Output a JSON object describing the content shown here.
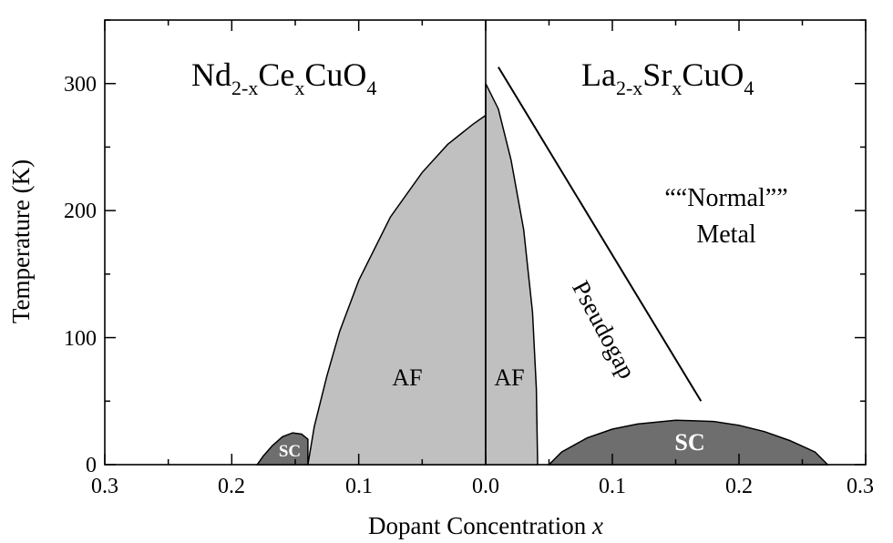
{
  "chart_data": {
    "type": "area",
    "title": "",
    "xlabel": "Dopant Concentration ",
    "xlabel_symbol": "x",
    "ylabel": "Temperature  (K)",
    "ylim": [
      0,
      350
    ],
    "yticks": [
      "0",
      "100",
      "200",
      "300"
    ],
    "x_tick_values": [
      0.3,
      0.2,
      0.1,
      0.0,
      0.1,
      0.2,
      0.3
    ],
    "x_tick_labels": [
      "0.3",
      "0.2",
      "0.1",
      "0.0",
      "0.1",
      "0.2",
      "0.3"
    ],
    "panels": {
      "left": {
        "compound": {
          "base": "Nd",
          "sub1": "2-x",
          "mid": "Ce",
          "sub2": "x",
          "tail": "CuO",
          "sub3": "4"
        },
        "x_direction": "decreasing",
        "x_range": [
          0.3,
          0.0
        ]
      },
      "right": {
        "compound": {
          "base": "La",
          "sub1": "2-x",
          "mid": "Sr",
          "sub2": "x",
          "tail": "CuO",
          "sub3": "4"
        },
        "x_direction": "increasing",
        "x_range": [
          0.0,
          0.3
        ]
      }
    },
    "series": [
      {
        "name": "AF",
        "panel": "left",
        "fill": "#c0c0c0",
        "points": [
          [
            0.0,
            0
          ],
          [
            0.0,
            275
          ],
          [
            0.01,
            268
          ],
          [
            0.03,
            252
          ],
          [
            0.05,
            230
          ],
          [
            0.075,
            195
          ],
          [
            0.1,
            145
          ],
          [
            0.115,
            105
          ],
          [
            0.125,
            70
          ],
          [
            0.135,
            30
          ],
          [
            0.14,
            0
          ]
        ]
      },
      {
        "name": "SC",
        "panel": "left",
        "fill": "#6e6e6e",
        "points": [
          [
            0.14,
            0
          ],
          [
            0.14,
            20
          ],
          [
            0.145,
            24
          ],
          [
            0.152,
            25
          ],
          [
            0.16,
            22
          ],
          [
            0.168,
            15
          ],
          [
            0.175,
            7
          ],
          [
            0.18,
            0
          ]
        ]
      },
      {
        "name": "AF",
        "panel": "right",
        "fill": "#c0c0c0",
        "points": [
          [
            0.0,
            0
          ],
          [
            0.0,
            300
          ],
          [
            0.01,
            280
          ],
          [
            0.02,
            240
          ],
          [
            0.03,
            185
          ],
          [
            0.037,
            120
          ],
          [
            0.04,
            60
          ],
          [
            0.041,
            0
          ]
        ]
      },
      {
        "name": "SC",
        "panel": "right",
        "fill": "#6e6e6e",
        "points": [
          [
            0.05,
            0
          ],
          [
            0.06,
            10
          ],
          [
            0.08,
            21
          ],
          [
            0.1,
            28
          ],
          [
            0.12,
            32
          ],
          [
            0.15,
            35
          ],
          [
            0.18,
            34
          ],
          [
            0.2,
            31
          ],
          [
            0.22,
            26
          ],
          [
            0.24,
            19
          ],
          [
            0.26,
            10
          ],
          [
            0.27,
            0
          ]
        ]
      },
      {
        "name": "Pseudogap",
        "panel": "right",
        "kind": "line",
        "points": [
          [
            0.01,
            313
          ],
          [
            0.17,
            50
          ]
        ]
      }
    ],
    "annotations": {
      "af_left": "AF",
      "sc_left": "SC",
      "af_right": "AF",
      "sc_right": "SC",
      "pseudogap": "Pseudogap",
      "normal_metal_line1": "““Normal””",
      "normal_metal_line2": "Metal"
    },
    "grid": false,
    "legend": "none"
  }
}
